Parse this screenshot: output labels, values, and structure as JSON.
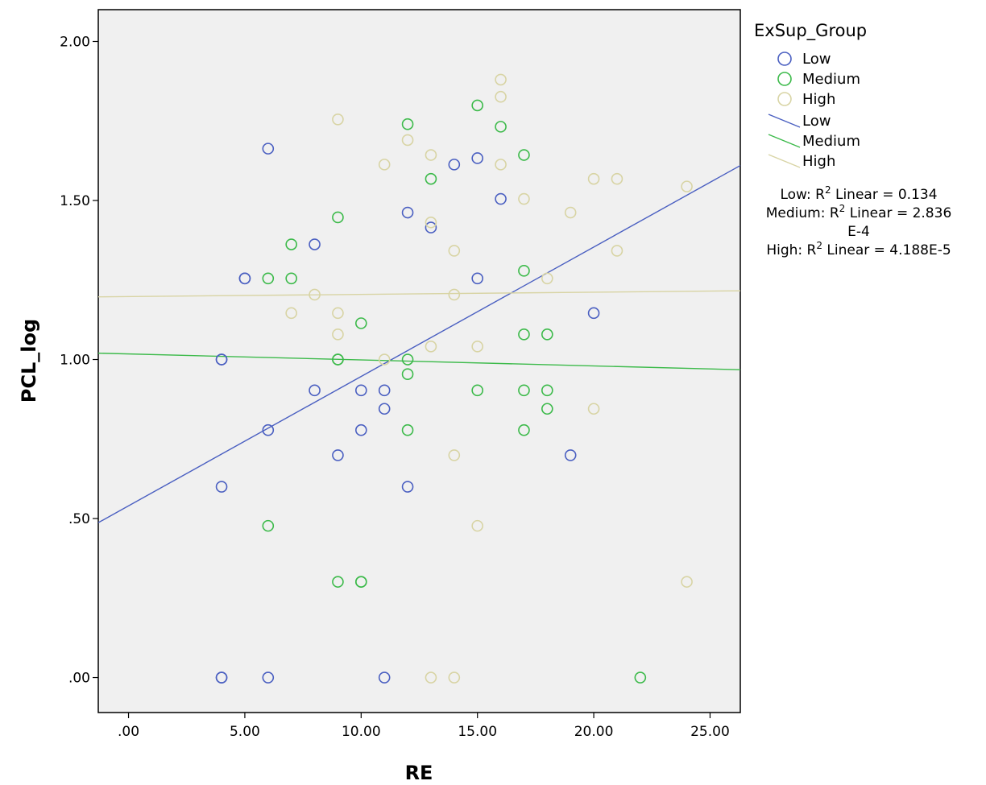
{
  "chart_data": {
    "type": "scatter",
    "xlabel": "RE",
    "ylabel": "PCL_log",
    "xlim": [
      -1.3,
      26.3
    ],
    "ylim": [
      -0.11,
      2.1
    ],
    "x_ticks": [
      {
        "value": 0,
        "label": ".00"
      },
      {
        "value": 5,
        "label": "5.00"
      },
      {
        "value": 10,
        "label": "10.00"
      },
      {
        "value": 15,
        "label": "15.00"
      },
      {
        "value": 20,
        "label": "20.00"
      },
      {
        "value": 25,
        "label": "25.00"
      }
    ],
    "y_ticks": [
      {
        "value": 0,
        "label": ".00"
      },
      {
        "value": 0.5,
        "label": ".50"
      },
      {
        "value": 1.0,
        "label": "1.00"
      },
      {
        "value": 1.5,
        "label": "1.50"
      },
      {
        "value": 2.0,
        "label": "2.00"
      }
    ],
    "grid": false,
    "legend_placement": "right",
    "legend_title": "ExSup_Group",
    "series": [
      {
        "name": "Low",
        "color": "#4a5fc1",
        "points": [
          [
            4,
            0
          ],
          [
            4,
            0
          ],
          [
            4,
            0.6
          ],
          [
            4,
            1.0
          ],
          [
            4,
            1.0
          ],
          [
            5,
            1.255
          ],
          [
            5,
            1.255
          ],
          [
            6,
            1.663
          ],
          [
            6,
            0.778
          ],
          [
            6,
            0
          ],
          [
            8,
            1.362
          ],
          [
            8,
            0.903
          ],
          [
            9,
            0.699
          ],
          [
            10,
            0.903
          ],
          [
            10,
            0.778
          ],
          [
            11,
            0.903
          ],
          [
            11,
            0.845
          ],
          [
            11,
            0
          ],
          [
            12,
            1.462
          ],
          [
            12,
            0.6
          ],
          [
            13,
            1.415
          ],
          [
            14,
            1.613
          ],
          [
            15,
            1.633
          ],
          [
            15,
            1.255
          ],
          [
            16,
            1.505
          ],
          [
            19,
            0.699
          ],
          [
            20,
            1.146
          ]
        ],
        "fit": {
          "x_start": -1.3,
          "y_start": 0.487,
          "x_end": 26.3,
          "y_end": 1.61
        }
      },
      {
        "name": "Medium",
        "color": "#3cba4a",
        "points": [
          [
            6,
            1.255
          ],
          [
            6,
            0.477
          ],
          [
            7,
            1.362
          ],
          [
            7,
            1.255
          ],
          [
            9,
            1.447
          ],
          [
            9,
            1.0
          ],
          [
            9,
            1.0
          ],
          [
            9,
            0.301
          ],
          [
            10,
            1.114
          ],
          [
            10,
            0.301
          ],
          [
            10,
            0.301
          ],
          [
            12,
            1.74
          ],
          [
            12,
            1.0
          ],
          [
            12,
            0.954
          ],
          [
            12,
            0.778
          ],
          [
            13,
            1.568
          ],
          [
            15,
            1.799
          ],
          [
            15,
            0.903
          ],
          [
            16,
            1.732
          ],
          [
            17,
            1.643
          ],
          [
            17,
            1.279
          ],
          [
            17,
            1.079
          ],
          [
            17,
            0.903
          ],
          [
            17,
            0.778
          ],
          [
            18,
            1.079
          ],
          [
            18,
            0.903
          ],
          [
            18,
            0.845
          ],
          [
            22,
            0
          ]
        ],
        "fit": {
          "x_start": -1.3,
          "y_start": 1.02,
          "x_end": 26.3,
          "y_end": 0.968
        }
      },
      {
        "name": "High",
        "color": "#d8d4a4",
        "points": [
          [
            7,
            1.146
          ],
          [
            8,
            1.204
          ],
          [
            9,
            1.755
          ],
          [
            9,
            1.146
          ],
          [
            9,
            1.079
          ],
          [
            11,
            1.613
          ],
          [
            11,
            1.0
          ],
          [
            12,
            1.69
          ],
          [
            13,
            1.643
          ],
          [
            13,
            1.431
          ],
          [
            13,
            1.041
          ],
          [
            13,
            0
          ],
          [
            14,
            1.342
          ],
          [
            14,
            1.204
          ],
          [
            14,
            0.699
          ],
          [
            14,
            0
          ],
          [
            15,
            1.041
          ],
          [
            15,
            0.477
          ],
          [
            16,
            1.88
          ],
          [
            16,
            1.826
          ],
          [
            16,
            1.613
          ],
          [
            17,
            1.505
          ],
          [
            18,
            1.255
          ],
          [
            19,
            1.462
          ],
          [
            20,
            1.568
          ],
          [
            20,
            0.845
          ],
          [
            21,
            1.568
          ],
          [
            21,
            1.342
          ],
          [
            24,
            1.544
          ],
          [
            24,
            0.301
          ]
        ],
        "fit": {
          "x_start": -1.3,
          "y_start": 1.197,
          "x_end": 26.3,
          "y_end": 1.216
        }
      }
    ],
    "fit_annotations": [
      {
        "group": "Low:",
        "r": "R",
        "sup": "2",
        "rest": " Linear = 0.134",
        "line2": ""
      },
      {
        "group": "Medium:",
        "r": "R",
        "sup": "2",
        "rest": " Linear = 2.836",
        "line2": "E-4"
      },
      {
        "group": "High:",
        "r": "R",
        "sup": "2",
        "rest": " Linear = 4.188E-5",
        "line2": ""
      }
    ]
  }
}
